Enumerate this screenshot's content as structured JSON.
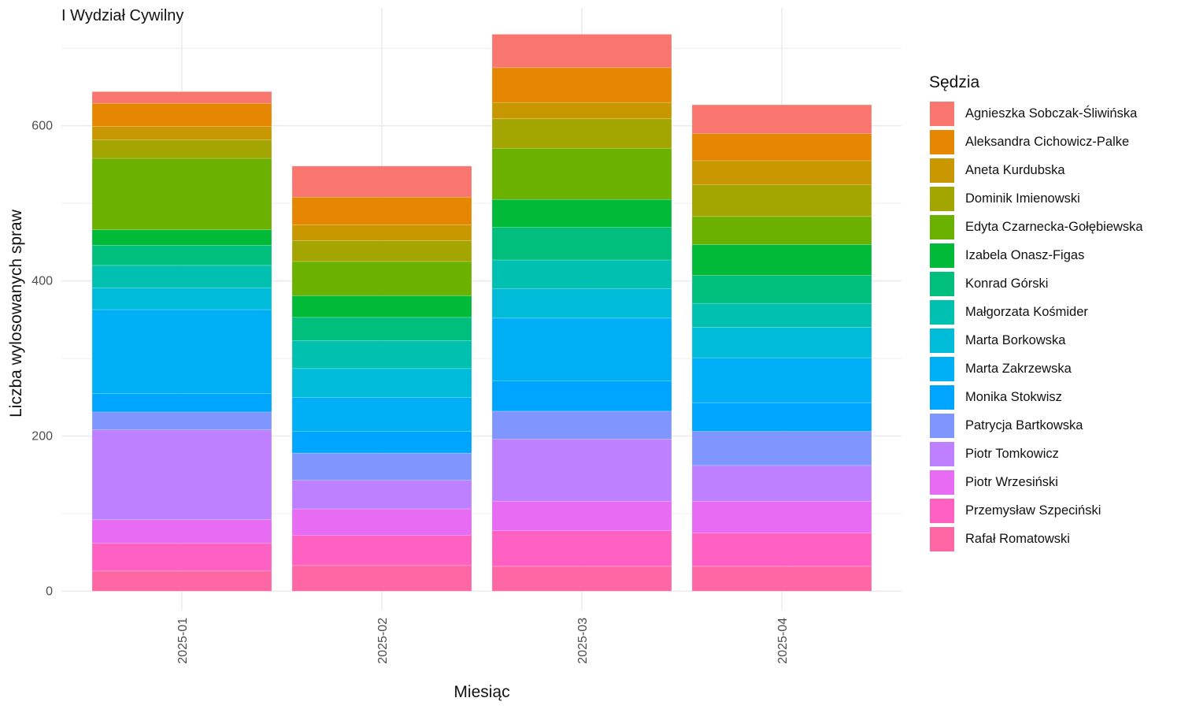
{
  "chart_data": {
    "type": "bar",
    "stacked": true,
    "title": "I Wydział Cywilny",
    "xlabel": "Miesiąc",
    "ylabel": "Liczba wylosowanych spraw",
    "ylim": [
      -25,
      752
    ],
    "yticks": [
      0,
      200,
      400,
      600
    ],
    "grid": true,
    "legend_title": "Sędzia",
    "legend_position": "right",
    "categories": [
      "2025-01",
      "2025-02",
      "2025-03",
      "2025-04"
    ],
    "series": [
      {
        "name": "Agnieszka Sobczak-Śliwińska",
        "color": "#F8766D",
        "values": [
          15,
          40,
          43,
          37
        ]
      },
      {
        "name": "Aleksandra Cichowicz-Palke",
        "color": "#E58700",
        "values": [
          30,
          36,
          45,
          35
        ]
      },
      {
        "name": "Aneta Kurdubska",
        "color": "#C99800",
        "values": [
          17,
          20,
          21,
          31
        ]
      },
      {
        "name": "Dominik Imienowski",
        "color": "#A3A500",
        "values": [
          24,
          27,
          38,
          41
        ]
      },
      {
        "name": "Edyta Czarnecka-Gołębiewska",
        "color": "#6BB100",
        "values": [
          92,
          44,
          66,
          36
        ]
      },
      {
        "name": "Izabela Onasz-Figas",
        "color": "#00BA38",
        "values": [
          20,
          28,
          36,
          40
        ]
      },
      {
        "name": "Konrad Górski",
        "color": "#00BF7D",
        "values": [
          26,
          30,
          42,
          36
        ]
      },
      {
        "name": "Małgorzata Kośmider",
        "color": "#00C0AF",
        "values": [
          29,
          36,
          37,
          31
        ]
      },
      {
        "name": "Marta Borkowska",
        "color": "#00BCD8",
        "values": [
          28,
          37,
          38,
          39
        ]
      },
      {
        "name": "Marta Zakrzewska",
        "color": "#00B0F6",
        "values": [
          108,
          44,
          81,
          58
        ]
      },
      {
        "name": "Monika Stokwisz",
        "color": "#00A5FF",
        "values": [
          24,
          28,
          39,
          37
        ]
      },
      {
        "name": "Patrycja Bartkowska",
        "color": "#7F96FF",
        "values": [
          23,
          35,
          36,
          44
        ]
      },
      {
        "name": "Piotr Tomkowicz",
        "color": "#BF80FF",
        "values": [
          116,
          37,
          80,
          46
        ]
      },
      {
        "name": "Piotr Wrzesiński",
        "color": "#E76BF3",
        "values": [
          30,
          34,
          38,
          41
        ]
      },
      {
        "name": "Przemysław Szpeciński",
        "color": "#FF61C3",
        "values": [
          36,
          39,
          46,
          43
        ]
      },
      {
        "name": "Rafał Romatowski",
        "color": "#FF67A4",
        "values": [
          26,
          33,
          32,
          32
        ]
      }
    ]
  }
}
